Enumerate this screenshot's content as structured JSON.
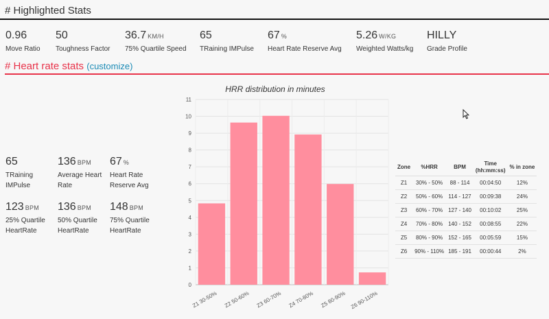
{
  "highlighted": {
    "title": "# Highlighted Stats",
    "stats": [
      {
        "value": "0.96",
        "unit": "",
        "label": "Move Ratio"
      },
      {
        "value": "50",
        "unit": "",
        "label": "Toughness Factor"
      },
      {
        "value": "36.7",
        "unit": "KM/H",
        "label": "75% Quartile Speed"
      },
      {
        "value": "65",
        "unit": "",
        "label": "TRaining IMPulse"
      },
      {
        "value": "67",
        "unit": "%",
        "label": "Heart Rate Reserve Avg"
      },
      {
        "value": "5.26",
        "unit": "W/KG",
        "label": "Weighted Watts/kg"
      },
      {
        "value": "HILLY",
        "unit": "",
        "label": "Grade Profile"
      }
    ]
  },
  "heart_rate": {
    "title": "# Heart rate stats",
    "customize": "(customize)",
    "stats": [
      {
        "value": "65",
        "unit": "",
        "label_lines": [
          "TRaining",
          "IMPulse"
        ]
      },
      {
        "value": "136",
        "unit": "BPM",
        "label_lines": [
          "Average Heart",
          "Rate"
        ]
      },
      {
        "value": "67",
        "unit": "%",
        "label_lines": [
          "Heart Rate",
          "Reserve Avg"
        ]
      },
      {
        "value": "123",
        "unit": "BPM",
        "label_lines": [
          "25% Quartile",
          "HeartRate"
        ]
      },
      {
        "value": "136",
        "unit": "BPM",
        "label_lines": [
          "50% Quartile",
          "HeartRate"
        ]
      },
      {
        "value": "148",
        "unit": "BPM",
        "label_lines": [
          "75% Quartile",
          "HeartRate"
        ]
      }
    ]
  },
  "chart_data": {
    "type": "bar",
    "title": "HRR distribution in minutes",
    "categories": [
      "Z1 30-50%",
      "Z2 50-60%",
      "Z3 60-70%",
      "Z4 70-80%",
      "Z5 80-90%",
      "Z6 90-110%"
    ],
    "values": [
      4.83,
      9.63,
      10.03,
      8.92,
      5.98,
      0.73
    ],
    "ylim": [
      0,
      11
    ],
    "yticks": [
      0,
      1,
      2,
      3,
      4,
      5,
      6,
      7,
      8,
      9,
      10,
      11
    ],
    "grid": true,
    "bar_color": "#ff8e9e"
  },
  "zones_table": {
    "headers": [
      "Zone",
      "%HRR",
      "BPM",
      "Time\n(hh:mm:ss)",
      "% in zone"
    ],
    "rows": [
      [
        "Z1",
        "30% - 50%",
        "88 - 114",
        "00:04:50",
        "12%"
      ],
      [
        "Z2",
        "50% - 60%",
        "114 - 127",
        "00:09:38",
        "24%"
      ],
      [
        "Z3",
        "60% - 70%",
        "127 - 140",
        "00:10:02",
        "25%"
      ],
      [
        "Z4",
        "70% - 80%",
        "140 - 152",
        "00:08:55",
        "22%"
      ],
      [
        "Z5",
        "80% - 90%",
        "152 - 165",
        "00:05:59",
        "15%"
      ],
      [
        "Z6",
        "90% - 110%",
        "185 - 191",
        "00:00:44",
        "2%"
      ]
    ]
  },
  "colors": {
    "accent_red": "#e8334a",
    "link_blue": "#1a8ab5"
  },
  "icons": {
    "cursor": "mouse-pointer-icon"
  }
}
